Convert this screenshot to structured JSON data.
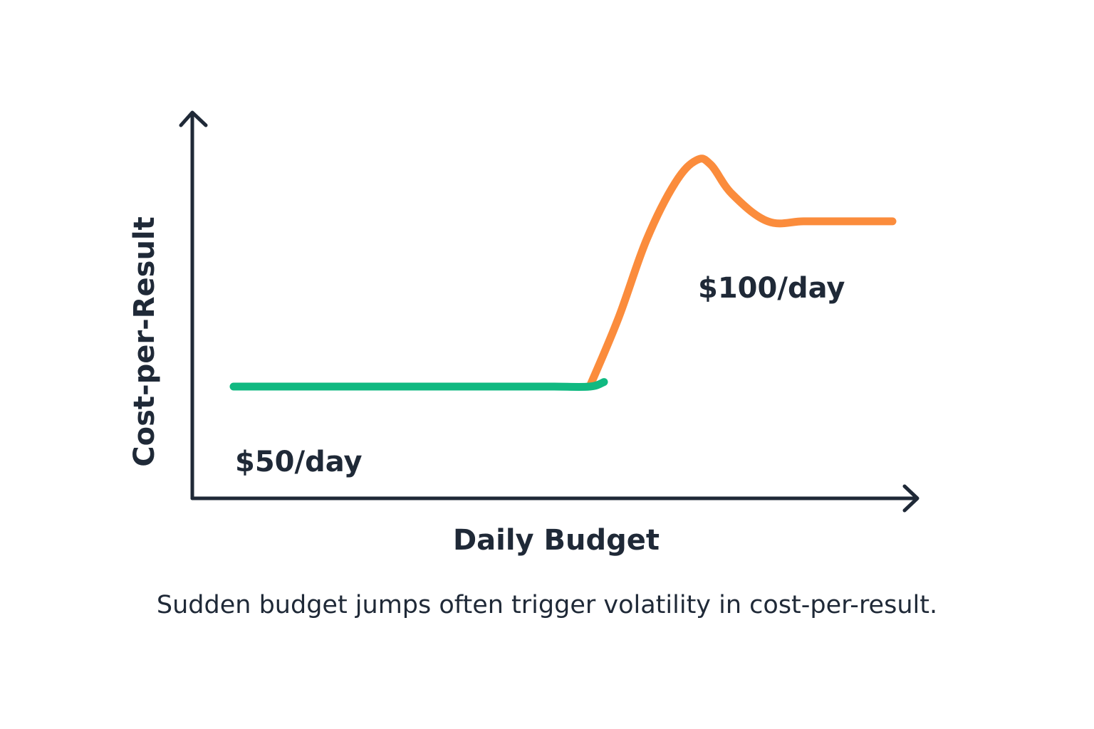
{
  "caption": "Sudden budget jumps often trigger volatility in cost-per-result.",
  "chart_data": {
    "type": "line",
    "title": "",
    "xlabel": "Daily Budget",
    "ylabel": "Cost-per-Result",
    "x": [
      0,
      100,
      200,
      300,
      400,
      450,
      500,
      540,
      580,
      620,
      650,
      670,
      700,
      750,
      800,
      850,
      925
    ],
    "series": [
      {
        "color": "#10b981",
        "x": [
          0,
          100,
          200,
          300,
          400,
          450,
          500,
          520
        ],
        "values": [
          0,
          0,
          0,
          0,
          0,
          0,
          0,
          0.02
        ]
      },
      {
        "color": "#fb8c3c",
        "x": [
          500,
          540,
          580,
          620,
          650,
          670,
          700,
          750,
          800,
          850,
          925
        ],
        "values": [
          0,
          0.3,
          0.65,
          0.9,
          1.0,
          0.98,
          0.85,
          0.73,
          0.73,
          0.73,
          0.73
        ]
      }
    ],
    "annotations": [
      {
        "text": "$50/day"
      },
      {
        "text": "$100/day"
      }
    ],
    "grid": false,
    "legend": "none"
  },
  "colors": {
    "axis": "#1f2937",
    "green": "#10b981",
    "orange": "#fb8c3c"
  }
}
